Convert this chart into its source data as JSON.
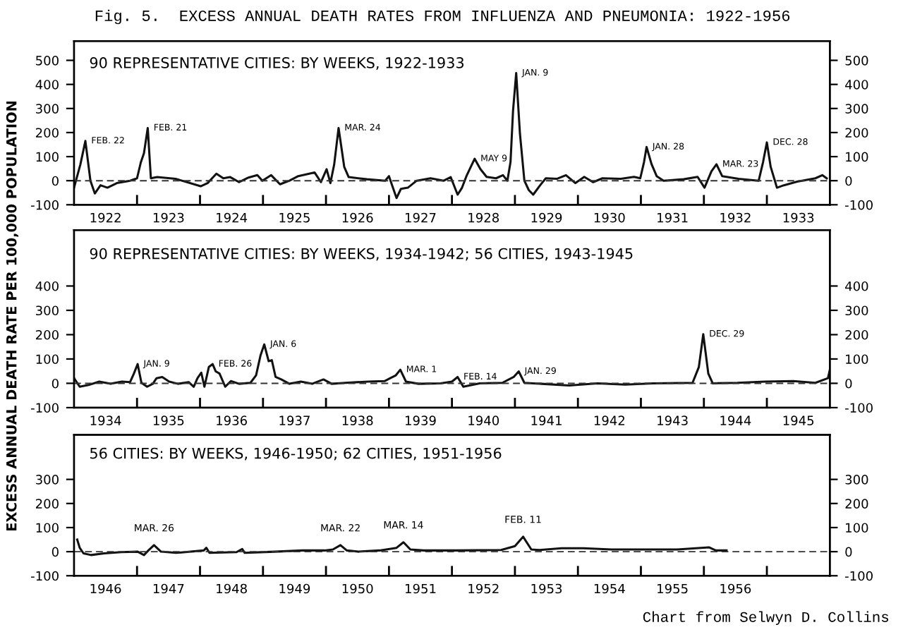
{
  "chart_data": [
    {
      "type": "line",
      "title": "Fig. 5.  EXCESS ANNUAL DEATH RATES FROM INFLUENZA AND PNEUMONIA: 1922-1956",
      "subtitle": "90 REPRESENTATIVE CITIES: BY WEEKS, 1922-1933",
      "x": [
        1922.0,
        1922.1,
        1922.18,
        1922.26,
        1922.33,
        1922.42,
        1922.53,
        1922.68,
        1922.89,
        1923.0,
        1923.06,
        1923.11,
        1923.17,
        1923.22,
        1923.32,
        1923.61,
        1924.01,
        1924.12,
        1924.26,
        1924.37,
        1924.48,
        1924.62,
        1924.77,
        1924.91,
        1924.99,
        1925.13,
        1925.27,
        1925.42,
        1925.56,
        1925.82,
        1925.92,
        1926.01,
        1926.07,
        1926.13,
        1926.2,
        1926.29,
        1926.36,
        1926.65,
        1926.94,
        1927.0,
        1927.05,
        1927.12,
        1927.19,
        1927.3,
        1927.44,
        1927.66,
        1927.87,
        1927.98,
        1928.09,
        1928.16,
        1928.23,
        1928.3,
        1928.36,
        1928.45,
        1928.55,
        1928.7,
        1928.81,
        1928.88,
        1928.93,
        1928.97,
        1929.02,
        1929.08,
        1929.15,
        1929.22,
        1929.29,
        1929.4,
        1929.49,
        1929.67,
        1929.81,
        1929.96,
        1930.1,
        1930.24,
        1930.39,
        1930.68,
        1930.89,
        1930.99,
        1931.05,
        1931.09,
        1931.17,
        1931.25,
        1931.36,
        1931.68,
        1931.9,
        1932.01,
        1932.12,
        1932.2,
        1932.29,
        1932.55,
        1932.87,
        1932.94,
        1933.0,
        1933.06,
        1933.16,
        1933.27,
        1933.48,
        1933.77,
        1933.88,
        1933.95
      ],
      "series": [
        {
          "color": "#111111",
          "values": [
            -29,
            67,
            165,
            0,
            -53,
            -19,
            -29,
            -10,
            0,
            10,
            76,
            114,
            219,
            10,
            15,
            8,
            -23,
            -10,
            29,
            10,
            15,
            -6,
            13,
            23,
            0,
            23,
            -15,
            0,
            19,
            34,
            -6,
            48,
            -10,
            67,
            219,
            57,
            15,
            6,
            0,
            19,
            -19,
            -72,
            -34,
            -29,
            0,
            10,
            0,
            15,
            -58,
            -29,
            19,
            58,
            91,
            49,
            16,
            10,
            23,
            0,
            78,
            291,
            447,
            194,
            0,
            -39,
            -58,
            -19,
            10,
            8,
            23,
            -10,
            16,
            -6,
            10,
            8,
            16,
            10,
            78,
            140,
            68,
            19,
            0,
            6,
            16,
            -29,
            39,
            68,
            19,
            8,
            0,
            78,
            159,
            58,
            -29,
            -19,
            -4,
            10,
            23,
            10
          ]
        }
      ],
      "xlim": [
        1922,
        1934
      ],
      "ylim": [
        -100,
        580
      ],
      "xticks": [
        {
          "value": 1923,
          "label": null
        },
        {
          "value": 1924,
          "label": null
        },
        {
          "value": 1925,
          "label": null
        },
        {
          "value": 1926,
          "label": null
        },
        {
          "value": 1927,
          "label": null
        },
        {
          "value": 1928,
          "label": null
        },
        {
          "value": 1929,
          "label": null
        },
        {
          "value": 1930,
          "label": null
        },
        {
          "value": 1931,
          "label": null
        },
        {
          "value": 1932,
          "label": null
        },
        {
          "value": 1933,
          "label": null
        },
        {
          "value": 1922.5,
          "label": "1922"
        },
        {
          "value": 1923.5,
          "label": "1923"
        },
        {
          "value": 1924.5,
          "label": "1924"
        },
        {
          "value": 1925.5,
          "label": "1925"
        },
        {
          "value": 1926.5,
          "label": "1926"
        },
        {
          "value": 1927.5,
          "label": "1927"
        },
        {
          "value": 1928.5,
          "label": "1928"
        },
        {
          "value": 1929.5,
          "label": "1929"
        },
        {
          "value": 1930.5,
          "label": "1930"
        },
        {
          "value": 1931.5,
          "label": "1931"
        },
        {
          "value": 1932.5,
          "label": "1932"
        },
        {
          "value": 1933.5,
          "label": "1933"
        }
      ],
      "yticks": [
        -100,
        0,
        100,
        200,
        300,
        400,
        500
      ],
      "y2lim": [
        -100,
        580
      ],
      "y2ticks": [
        -100,
        0,
        100,
        200,
        300,
        400,
        500
      ],
      "ref_lines": [
        {
          "axis": "y",
          "value": 0,
          "line_style": "dashed"
        }
      ],
      "annotations": [
        {
          "text": "FEB. 22",
          "x": 1922.18,
          "y": 165
        },
        {
          "text": "FEB. 21",
          "x": 1923.17,
          "y": 219
        },
        {
          "text": "MAR. 24",
          "x": 1926.2,
          "y": 219
        },
        {
          "text": "MAY 9",
          "x": 1928.36,
          "y": 91
        },
        {
          "text": "JAN. 9",
          "x": 1929.02,
          "y": 447
        },
        {
          "text": "JAN. 28",
          "x": 1931.09,
          "y": 140
        },
        {
          "text": "MAR. 23",
          "x": 1932.2,
          "y": 68
        },
        {
          "text": "DEC. 28",
          "x": 1933.0,
          "y": 159
        }
      ],
      "grid": false
    },
    {
      "type": "line",
      "subtitle": "90 REPRESENTATIVE CITIES: BY WEEKS, 1934-1942; 56 CITIES, 1943-1945",
      "ylabel": "EXCESS ANNUAL DEATH RATE PER 100,000 POPULATION",
      "x": [
        1934.0,
        1934.09,
        1934.23,
        1934.4,
        1934.58,
        1934.76,
        1934.89,
        1934.95,
        1935.01,
        1935.07,
        1935.16,
        1935.25,
        1935.31,
        1935.4,
        1935.51,
        1935.65,
        1935.82,
        1935.9,
        1935.96,
        1936.02,
        1936.07,
        1936.14,
        1936.2,
        1936.25,
        1936.31,
        1936.4,
        1936.49,
        1936.62,
        1936.8,
        1936.89,
        1936.96,
        1937.02,
        1937.09,
        1937.14,
        1937.2,
        1937.29,
        1937.42,
        1937.6,
        1937.78,
        1937.96,
        1938.09,
        1938.31,
        1938.67,
        1938.93,
        1939.02,
        1939.11,
        1939.18,
        1939.27,
        1939.47,
        1939.82,
        1940.0,
        1940.09,
        1940.18,
        1940.44,
        1940.8,
        1940.98,
        1941.06,
        1941.15,
        1941.42,
        1941.86,
        1942.31,
        1942.75,
        1943.2,
        1943.82,
        1943.92,
        1943.99,
        1944.07,
        1944.14,
        1944.53,
        1944.97,
        1945.42,
        1945.77,
        1945.97,
        1946.0
      ],
      "series": [
        {
          "color": "#111111",
          "values": [
            21,
            -14,
            -7,
            7,
            -2,
            7,
            5,
            40,
            79,
            2,
            -14,
            -2,
            21,
            26,
            7,
            -2,
            5,
            -14,
            21,
            44,
            -14,
            67,
            79,
            49,
            40,
            -14,
            9,
            -2,
            2,
            33,
            114,
            160,
            91,
            95,
            26,
            16,
            -2,
            7,
            -2,
            16,
            -2,
            2,
            7,
            9,
            21,
            33,
            56,
            7,
            -2,
            0,
            7,
            26,
            -14,
            0,
            2,
            26,
            49,
            2,
            -2,
            -9,
            0,
            -5,
            0,
            2,
            67,
            202,
            40,
            0,
            2,
            7,
            9,
            2,
            21,
            56
          ]
        }
      ],
      "xlim": [
        1934,
        1946
      ],
      "ylim": [
        -100,
        630
      ],
      "xticks": [
        {
          "value": 1935,
          "label": null
        },
        {
          "value": 1936,
          "label": null
        },
        {
          "value": 1937,
          "label": null
        },
        {
          "value": 1938,
          "label": null
        },
        {
          "value": 1939,
          "label": null
        },
        {
          "value": 1940,
          "label": null
        },
        {
          "value": 1941,
          "label": null
        },
        {
          "value": 1942,
          "label": null
        },
        {
          "value": 1943,
          "label": null
        },
        {
          "value": 1944,
          "label": null
        },
        {
          "value": 1945,
          "label": null
        },
        {
          "value": 1934.5,
          "label": "1934"
        },
        {
          "value": 1935.5,
          "label": "1935"
        },
        {
          "value": 1936.5,
          "label": "1936"
        },
        {
          "value": 1937.5,
          "label": "1937"
        },
        {
          "value": 1938.5,
          "label": "1938"
        },
        {
          "value": 1939.5,
          "label": "1939"
        },
        {
          "value": 1940.5,
          "label": "1940"
        },
        {
          "value": 1941.5,
          "label": "1941"
        },
        {
          "value": 1942.5,
          "label": "1942"
        },
        {
          "value": 1943.5,
          "label": "1943"
        },
        {
          "value": 1944.5,
          "label": "1944"
        },
        {
          "value": 1945.5,
          "label": "1945"
        }
      ],
      "yticks": [
        -100,
        0,
        100,
        200,
        300,
        400
      ],
      "y2lim": [
        -100,
        630
      ],
      "y2ticks": [
        -100,
        0,
        100,
        200,
        300,
        400
      ],
      "ref_lines": [
        {
          "axis": "y",
          "value": 0,
          "line_style": "dashed"
        }
      ],
      "annotations": [
        {
          "text": "JAN. 9",
          "x": 1935.01,
          "y": 79
        },
        {
          "text": "FEB. 26",
          "x": 1936.2,
          "y": 79
        },
        {
          "text": "JAN. 6",
          "x": 1937.02,
          "y": 160
        },
        {
          "text": "MAR. 1",
          "x": 1939.18,
          "y": 56
        },
        {
          "text": "FEB. 14",
          "x": 1940.09,
          "y": 26
        },
        {
          "text": "JAN. 29",
          "x": 1941.06,
          "y": 49
        },
        {
          "text": "DEC. 29",
          "x": 1943.99,
          "y": 202
        }
      ],
      "grid": false
    },
    {
      "type": "line",
      "subtitle": "56 CITIES: BY WEEKS, 1946-1950; 62 CITIES, 1951-1956",
      "x": [
        1946.05,
        1946.09,
        1946.15,
        1946.27,
        1946.48,
        1946.75,
        1947.01,
        1947.11,
        1947.18,
        1947.27,
        1947.38,
        1947.62,
        1948.06,
        1948.1,
        1948.15,
        1948.58,
        1948.67,
        1948.71,
        1949.19,
        1949.63,
        1949.98,
        1950.11,
        1950.23,
        1950.33,
        1950.51,
        1950.85,
        1951.12,
        1951.23,
        1951.34,
        1951.55,
        1952.08,
        1952.78,
        1953.0,
        1953.13,
        1953.26,
        1953.39,
        1953.74,
        1954.09,
        1954.53,
        1955.14,
        1955.58,
        1956.08,
        1956.19,
        1956.36
      ],
      "series": [
        {
          "color": "#111111",
          "values": [
            50,
            16,
            -7,
            -14,
            -7,
            -2,
            0,
            -14,
            5,
            27,
            0,
            -5,
            5,
            16,
            -5,
            -2,
            11,
            -5,
            0,
            5,
            5,
            9,
            27,
            5,
            0,
            5,
            16,
            39,
            9,
            5,
            5,
            7,
            23,
            62,
            9,
            7,
            14,
            14,
            9,
            9,
            9,
            18,
            5,
            5
          ]
        }
      ],
      "xlim": [
        1946,
        1958
      ],
      "ylim": [
        -100,
        485
      ],
      "xticks": [
        {
          "value": 1947,
          "label": null
        },
        {
          "value": 1948,
          "label": null
        },
        {
          "value": 1949,
          "label": null
        },
        {
          "value": 1950,
          "label": null
        },
        {
          "value": 1951,
          "label": null
        },
        {
          "value": 1952,
          "label": null
        },
        {
          "value": 1953,
          "label": null
        },
        {
          "value": 1954,
          "label": null
        },
        {
          "value": 1955,
          "label": null
        },
        {
          "value": 1956,
          "label": null
        },
        {
          "value": 1957,
          "label": null
        },
        {
          "value": 1946.5,
          "label": "1946"
        },
        {
          "value": 1947.5,
          "label": "1947"
        },
        {
          "value": 1948.5,
          "label": "1948"
        },
        {
          "value": 1949.5,
          "label": "1949"
        },
        {
          "value": 1950.5,
          "label": "1950"
        },
        {
          "value": 1951.5,
          "label": "1951"
        },
        {
          "value": 1952.5,
          "label": "1952"
        },
        {
          "value": 1953.5,
          "label": "1953"
        },
        {
          "value": 1954.5,
          "label": "1954"
        },
        {
          "value": 1955.5,
          "label": "1955"
        },
        {
          "value": 1956.5,
          "label": "1956"
        }
      ],
      "yticks": [
        -100,
        0,
        100,
        200,
        300
      ],
      "y2lim": [
        -100,
        485
      ],
      "y2ticks": [
        -100,
        0,
        100,
        200,
        300
      ],
      "ref_lines": [
        {
          "axis": "y",
          "value": 0,
          "line_style": "dashed"
        }
      ],
      "annotations": [
        {
          "text": "MAR. 26",
          "x": 1947.27,
          "y": 27
        },
        {
          "text": "MAR. 22",
          "x": 1950.23,
          "y": 27
        },
        {
          "text": "MAR. 14",
          "x": 1951.23,
          "y": 39
        },
        {
          "text": "FEB. 11",
          "x": 1953.13,
          "y": 62
        },
        "Chart from Selwyn D. Collins"
      ],
      "grid": false
    }
  ]
}
